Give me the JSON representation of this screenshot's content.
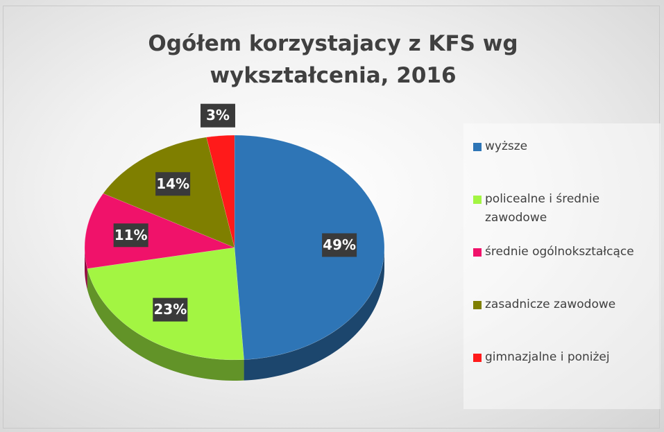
{
  "chart_data": {
    "type": "pie",
    "title": "Ogółem korzystajacy z KFS wg wykształcenia, 2016",
    "categories": [
      "wyższe",
      "policealne i średnie zawodowe",
      "średnie ogólnokształcące",
      "zasadnicze zawodowe",
      "gimnazjalne i poniżej"
    ],
    "values": [
      49,
      23,
      11,
      14,
      3
    ],
    "value_labels": [
      "49%",
      "23%",
      "11%",
      "14%",
      "3%"
    ],
    "colors": [
      "#2e75b6",
      "#a3f542",
      "#f0126a",
      "#7f7f00",
      "#ff1a1a"
    ],
    "legend": "right"
  }
}
